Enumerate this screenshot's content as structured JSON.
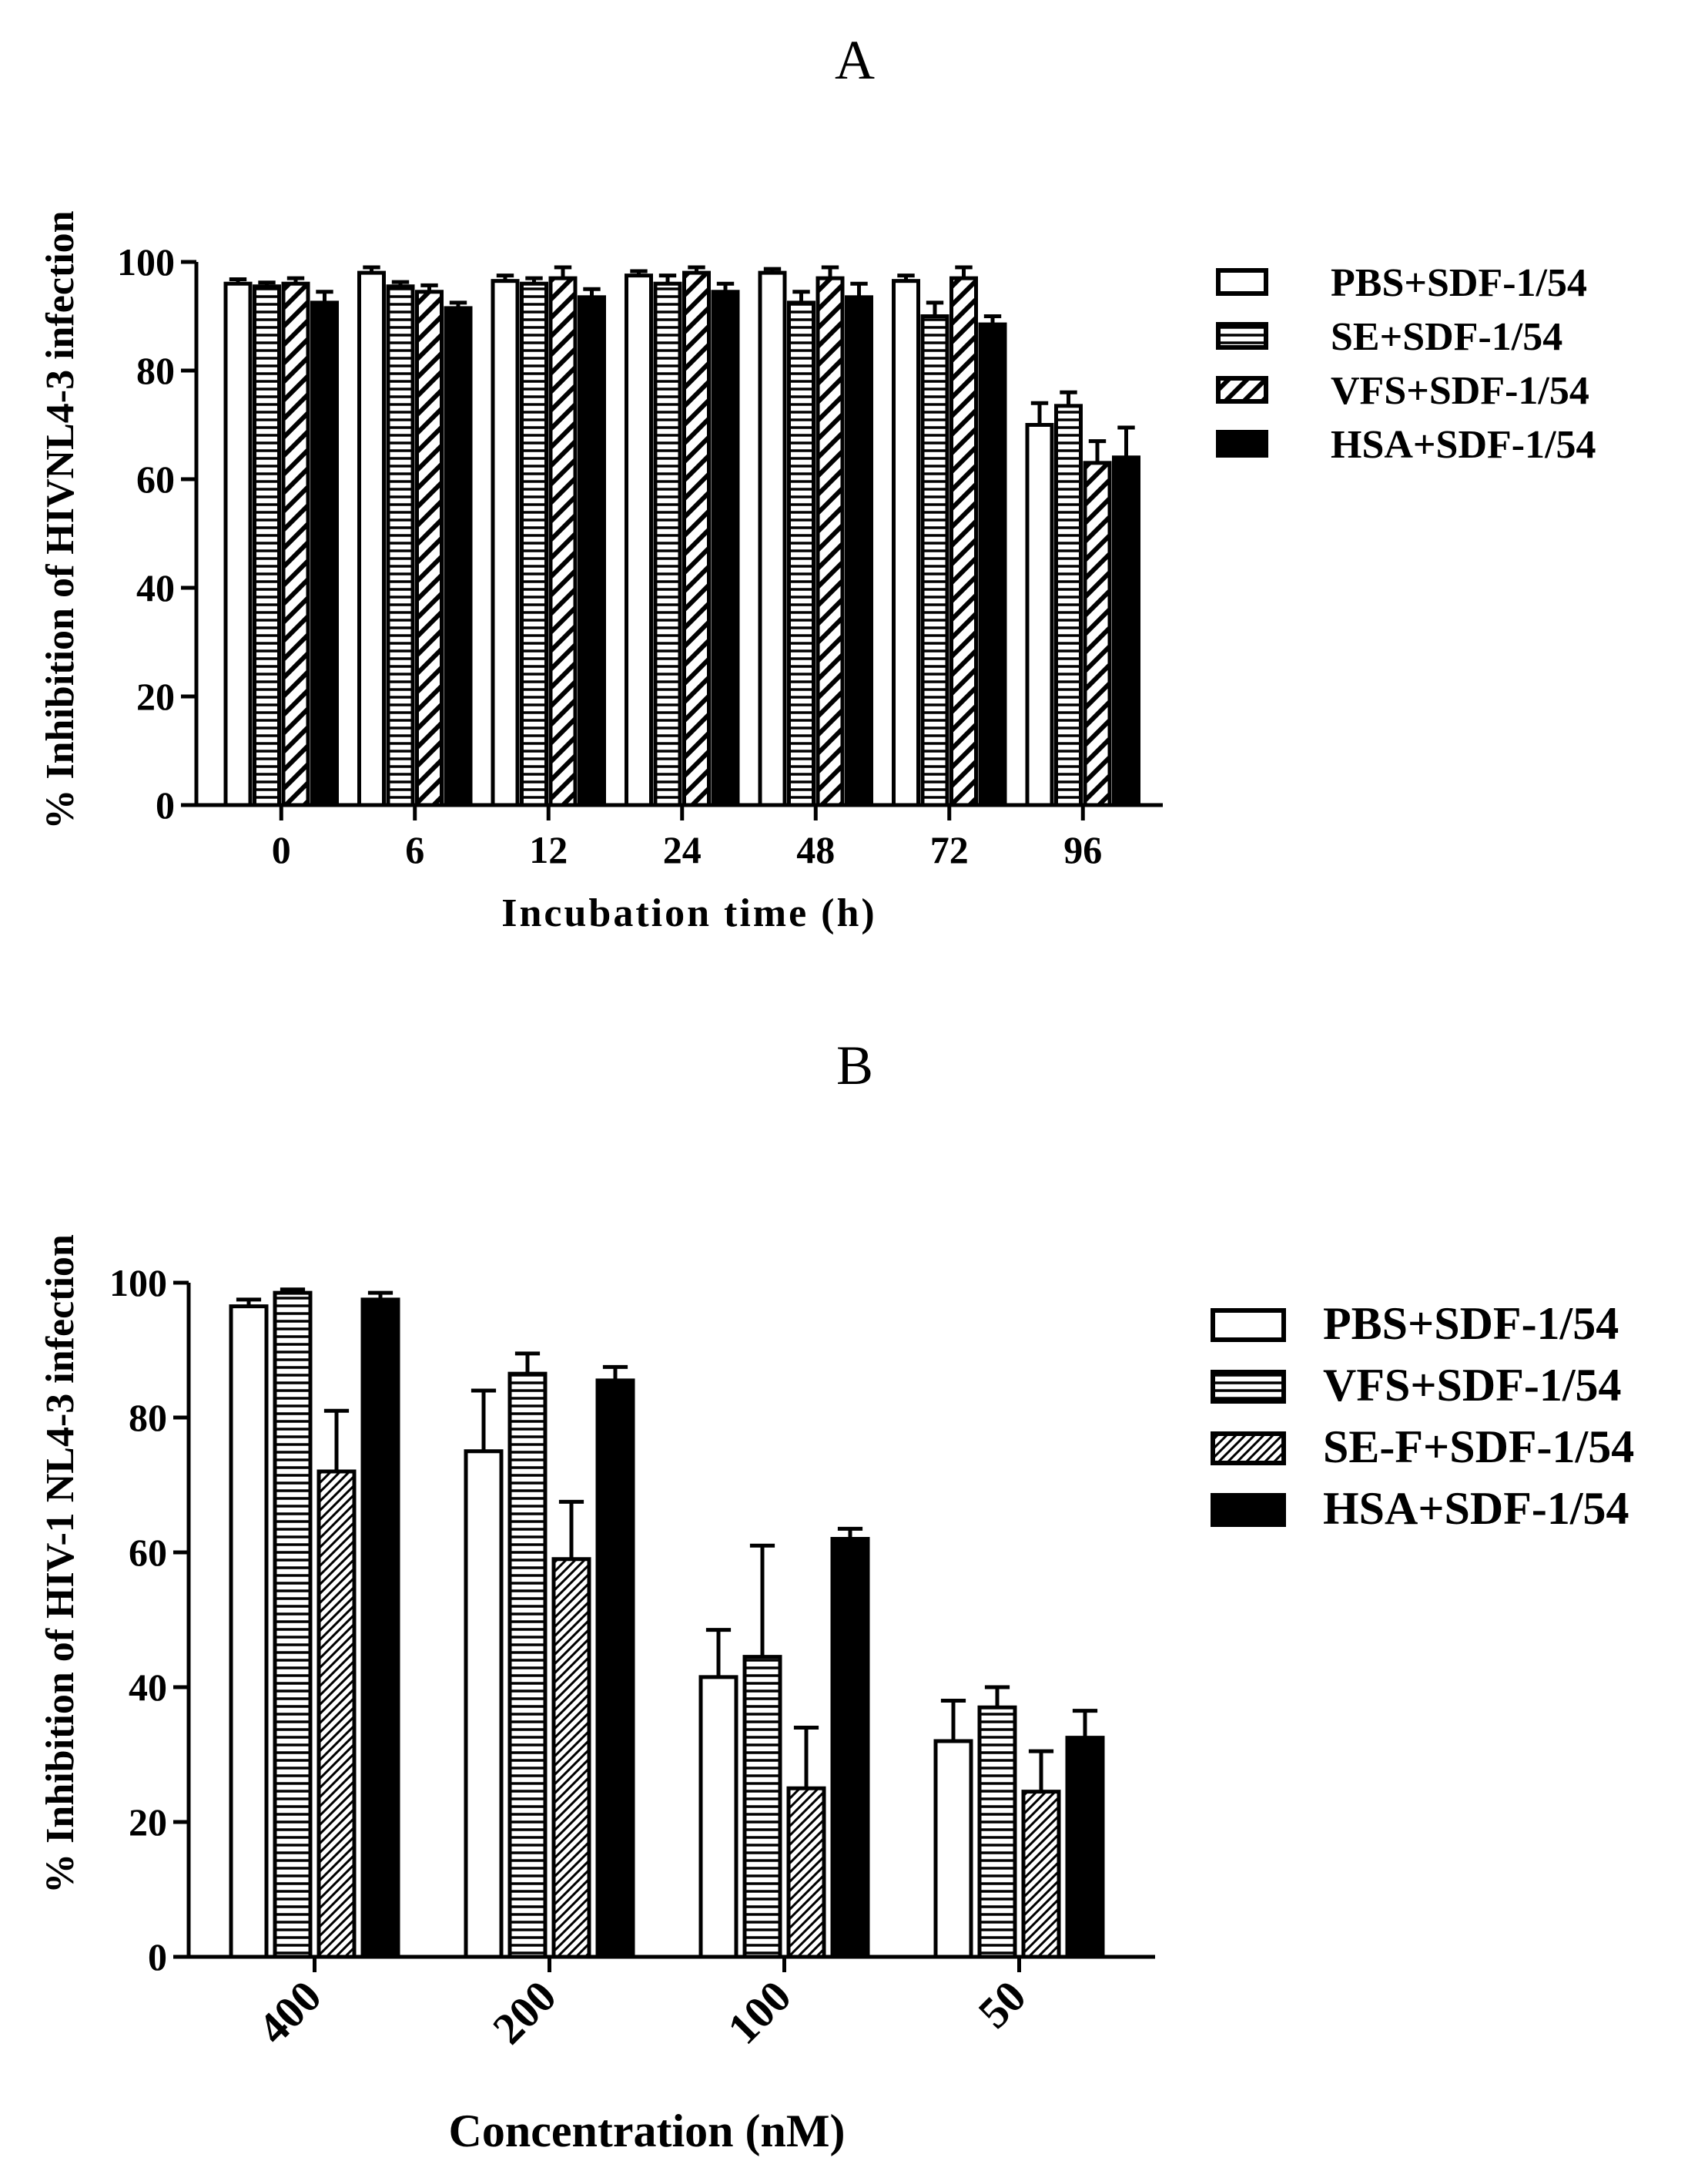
{
  "chart_data": [
    {
      "panel_label": "A",
      "type": "bar",
      "xlabel": "Incubation time  (h)",
      "ylabel": "% Inhibition of HIVNL4-3 infection",
      "ylim": [
        0,
        100
      ],
      "yticks": [
        "0",
        "20",
        "40",
        "60",
        "80",
        "100"
      ],
      "categories": [
        "0",
        "6",
        "12",
        "24",
        "48",
        "72",
        "96"
      ],
      "series": [
        {
          "name": "PBS+SDF-1/54",
          "pattern": "white",
          "values": [
            96,
            98,
            96.5,
            97.5,
            98,
            96.5,
            70
          ],
          "errors": [
            0.8,
            1,
            1,
            0.8,
            0.7,
            1,
            4
          ]
        },
        {
          "name": "SE+SDF-1/54",
          "pattern": "hlines",
          "values": [
            95.5,
            95.5,
            96,
            96,
            92.5,
            90,
            73.5
          ],
          "errors": [
            0.7,
            0.8,
            1,
            1.5,
            2,
            2.5,
            2.5
          ]
        },
        {
          "name": "VFS+SDF-1/54",
          "pattern": "diag",
          "values": [
            96,
            94.5,
            97,
            98,
            97,
            97,
            63
          ],
          "errors": [
            1,
            1.2,
            2,
            1,
            2,
            2,
            4
          ]
        },
        {
          "name": "HSA+SDF-1/54",
          "pattern": "black",
          "values": [
            92.5,
            91.5,
            93.5,
            94.5,
            93.5,
            88.5,
            64
          ],
          "errors": [
            2,
            1,
            1.5,
            1.5,
            2.5,
            1.5,
            5.5
          ]
        }
      ]
    },
    {
      "panel_label": "B",
      "type": "bar",
      "xlabel": "Concentration (nM)",
      "ylabel": "% Inhibition of HIV-1 NL4-3 infection",
      "ylim": [
        0,
        100
      ],
      "yticks": [
        "0",
        "20",
        "40",
        "60",
        "80",
        "100"
      ],
      "categories": [
        "400",
        "200",
        "100",
        "50"
      ],
      "series": [
        {
          "name": "PBS+SDF-1/54",
          "pattern": "white",
          "values": [
            96.5,
            75,
            41.5,
            32
          ],
          "errors": [
            1,
            9,
            7,
            6
          ]
        },
        {
          "name": "VFS+SDF-1/54",
          "pattern": "hlines",
          "values": [
            98.5,
            86.5,
            44.5,
            37
          ],
          "errors": [
            0.5,
            3,
            16.5,
            3
          ]
        },
        {
          "name": "SE-F+SDF-1/54",
          "pattern": "fdiag",
          "values": [
            72,
            59,
            25,
            24.5
          ],
          "errors": [
            9,
            8.5,
            9,
            6
          ]
        },
        {
          "name": "HSA+SDF-1/54",
          "pattern": "black",
          "values": [
            97.5,
            85.5,
            62,
            32.5
          ],
          "errors": [
            1,
            2,
            1.5,
            4
          ]
        }
      ]
    }
  ]
}
